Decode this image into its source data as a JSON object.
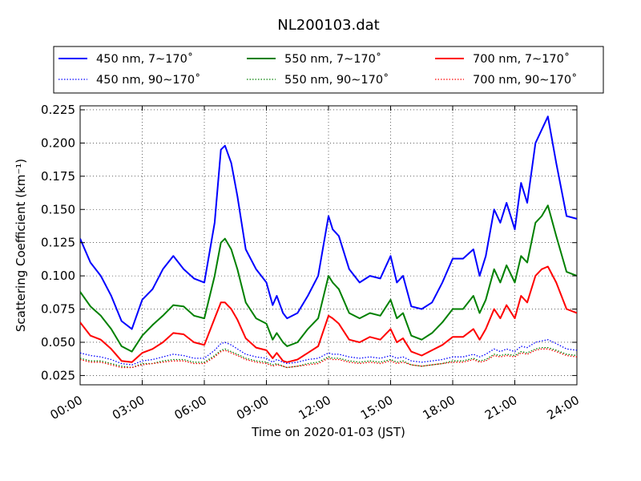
{
  "chart_data": {
    "type": "line",
    "title": "NL200103.dat",
    "xlabel": "Time on 2020-01-03 (JST)",
    "ylabel": "Scattering Coefficient (km⁻¹)",
    "xlim": [
      0,
      24
    ],
    "ylim": [
      0.018,
      0.228
    ],
    "grid": true,
    "legend_position": "top, above plot, 3 columns",
    "x_ticks": [
      {
        "value": 0,
        "label": "00:00"
      },
      {
        "value": 3,
        "label": "03:00"
      },
      {
        "value": 6,
        "label": "06:00"
      },
      {
        "value": 9,
        "label": "09:00"
      },
      {
        "value": 12,
        "label": "12:00"
      },
      {
        "value": 15,
        "label": "15:00"
      },
      {
        "value": 18,
        "label": "18:00"
      },
      {
        "value": 21,
        "label": "21:00"
      },
      {
        "value": 24,
        "label": "24:00"
      }
    ],
    "y_ticks": [
      {
        "value": 0.025,
        "label": "0.025"
      },
      {
        "value": 0.05,
        "label": "0.050"
      },
      {
        "value": 0.075,
        "label": "0.075"
      },
      {
        "value": 0.1,
        "label": "0.100"
      },
      {
        "value": 0.125,
        "label": "0.125"
      },
      {
        "value": 0.15,
        "label": "0.150"
      },
      {
        "value": 0.175,
        "label": "0.175"
      },
      {
        "value": 0.2,
        "label": "0.200"
      },
      {
        "value": 0.225,
        "label": "0.225"
      }
    ],
    "x": [
      0,
      0.5,
      1,
      1.5,
      2,
      2.5,
      3,
      3.5,
      4,
      4.5,
      5,
      5.5,
      6,
      6.5,
      6.8,
      7,
      7.3,
      7.6,
      8,
      8.5,
      9,
      9.3,
      9.5,
      9.8,
      10,
      10.5,
      11,
      11.5,
      12,
      12.2,
      12.5,
      13,
      13.5,
      14,
      14.5,
      15,
      15.3,
      15.6,
      16,
      16.5,
      17,
      17.5,
      18,
      18.5,
      19,
      19.3,
      19.6,
      20,
      20.3,
      20.6,
      21,
      21.3,
      21.6,
      22,
      22.3,
      22.6,
      23,
      23.5,
      24
    ],
    "series": [
      {
        "name": "450 nm, 7∼170˚",
        "color": "#0000ff",
        "style": "solid",
        "values": [
          0.128,
          0.11,
          0.1,
          0.085,
          0.066,
          0.06,
          0.082,
          0.09,
          0.105,
          0.115,
          0.105,
          0.098,
          0.095,
          0.14,
          0.195,
          0.198,
          0.185,
          0.16,
          0.12,
          0.105,
          0.095,
          0.078,
          0.085,
          0.072,
          0.068,
          0.072,
          0.085,
          0.1,
          0.145,
          0.135,
          0.13,
          0.105,
          0.095,
          0.1,
          0.098,
          0.115,
          0.095,
          0.1,
          0.077,
          0.075,
          0.08,
          0.095,
          0.113,
          0.113,
          0.12,
          0.1,
          0.115,
          0.15,
          0.14,
          0.155,
          0.135,
          0.17,
          0.155,
          0.2,
          0.21,
          0.22,
          0.185,
          0.145,
          0.143
        ]
      },
      {
        "name": "550 nm, 7∼170˚",
        "color": "#008000",
        "style": "solid",
        "values": [
          0.088,
          0.077,
          0.07,
          0.06,
          0.047,
          0.043,
          0.055,
          0.063,
          0.07,
          0.078,
          0.077,
          0.07,
          0.068,
          0.1,
          0.125,
          0.128,
          0.12,
          0.105,
          0.08,
          0.068,
          0.064,
          0.052,
          0.057,
          0.05,
          0.047,
          0.05,
          0.06,
          0.068,
          0.1,
          0.095,
          0.09,
          0.072,
          0.068,
          0.072,
          0.07,
          0.082,
          0.068,
          0.072,
          0.055,
          0.052,
          0.057,
          0.065,
          0.075,
          0.075,
          0.085,
          0.072,
          0.082,
          0.105,
          0.095,
          0.108,
          0.095,
          0.115,
          0.11,
          0.14,
          0.145,
          0.153,
          0.13,
          0.103,
          0.1
        ]
      },
      {
        "name": "700 nm, 7∼170˚",
        "color": "#ff0000",
        "style": "solid",
        "values": [
          0.065,
          0.055,
          0.052,
          0.045,
          0.036,
          0.035,
          0.042,
          0.045,
          0.05,
          0.057,
          0.056,
          0.05,
          0.048,
          0.068,
          0.08,
          0.08,
          0.075,
          0.067,
          0.053,
          0.046,
          0.044,
          0.038,
          0.042,
          0.036,
          0.035,
          0.037,
          0.042,
          0.047,
          0.07,
          0.068,
          0.064,
          0.052,
          0.05,
          0.054,
          0.052,
          0.06,
          0.05,
          0.053,
          0.043,
          0.04,
          0.044,
          0.048,
          0.054,
          0.054,
          0.06,
          0.052,
          0.06,
          0.075,
          0.068,
          0.078,
          0.068,
          0.085,
          0.08,
          0.1,
          0.105,
          0.107,
          0.095,
          0.075,
          0.072
        ]
      },
      {
        "name": "450 nm, 90∼170˚",
        "color": "#0000ff",
        "style": "dotted",
        "values": [
          0.042,
          0.04,
          0.039,
          0.037,
          0.034,
          0.033,
          0.036,
          0.037,
          0.039,
          0.041,
          0.04,
          0.038,
          0.038,
          0.044,
          0.049,
          0.05,
          0.048,
          0.045,
          0.041,
          0.039,
          0.038,
          0.035,
          0.037,
          0.035,
          0.034,
          0.035,
          0.037,
          0.038,
          0.042,
          0.041,
          0.041,
          0.039,
          0.038,
          0.039,
          0.038,
          0.04,
          0.038,
          0.039,
          0.036,
          0.035,
          0.036,
          0.037,
          0.039,
          0.039,
          0.041,
          0.039,
          0.041,
          0.045,
          0.043,
          0.045,
          0.043,
          0.047,
          0.046,
          0.05,
          0.051,
          0.052,
          0.049,
          0.045,
          0.044
        ]
      },
      {
        "name": "550 nm, 90∼170˚",
        "color": "#008000",
        "style": "dotted",
        "values": [
          0.038,
          0.036,
          0.036,
          0.034,
          0.032,
          0.031,
          0.034,
          0.034,
          0.036,
          0.037,
          0.037,
          0.035,
          0.035,
          0.04,
          0.044,
          0.045,
          0.043,
          0.041,
          0.038,
          0.036,
          0.035,
          0.033,
          0.034,
          0.032,
          0.031,
          0.032,
          0.034,
          0.035,
          0.039,
          0.038,
          0.038,
          0.036,
          0.035,
          0.036,
          0.035,
          0.037,
          0.035,
          0.036,
          0.033,
          0.032,
          0.033,
          0.034,
          0.036,
          0.036,
          0.038,
          0.036,
          0.037,
          0.041,
          0.04,
          0.041,
          0.04,
          0.043,
          0.042,
          0.045,
          0.046,
          0.046,
          0.044,
          0.041,
          0.04
        ]
      },
      {
        "name": "700 nm, 90∼170˚",
        "color": "#ff0000",
        "style": "dotted",
        "values": [
          0.037,
          0.035,
          0.035,
          0.033,
          0.031,
          0.031,
          0.033,
          0.034,
          0.035,
          0.036,
          0.036,
          0.034,
          0.034,
          0.039,
          0.043,
          0.044,
          0.042,
          0.04,
          0.037,
          0.035,
          0.034,
          0.032,
          0.033,
          0.032,
          0.031,
          0.032,
          0.033,
          0.034,
          0.038,
          0.037,
          0.037,
          0.035,
          0.034,
          0.035,
          0.034,
          0.036,
          0.034,
          0.035,
          0.033,
          0.032,
          0.033,
          0.034,
          0.035,
          0.035,
          0.037,
          0.035,
          0.036,
          0.04,
          0.039,
          0.04,
          0.039,
          0.042,
          0.041,
          0.044,
          0.045,
          0.045,
          0.043,
          0.04,
          0.039
        ]
      }
    ]
  }
}
